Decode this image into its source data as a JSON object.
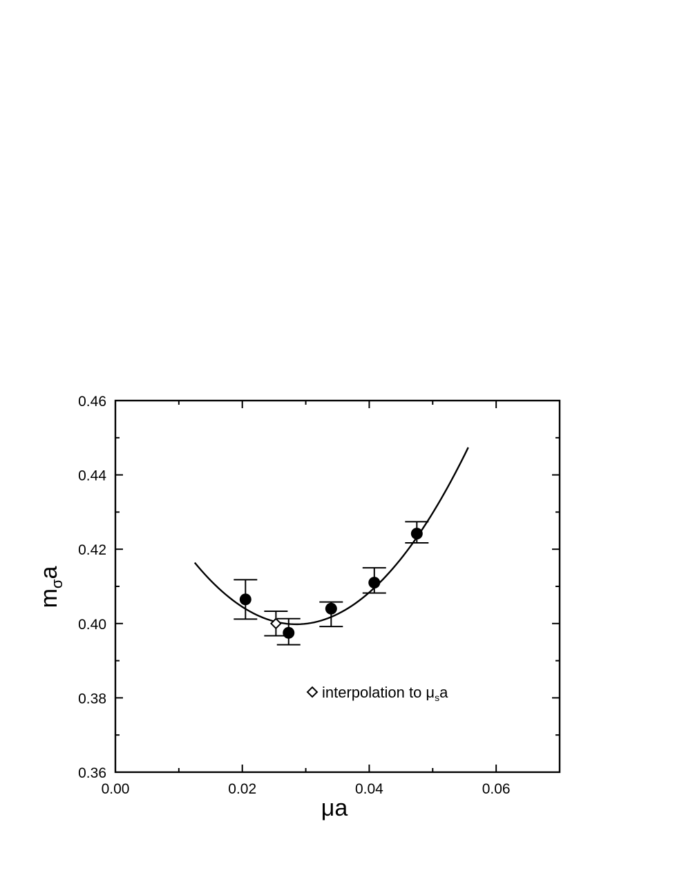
{
  "chart_data": {
    "type": "scatter",
    "title": "",
    "xlabel": "μa",
    "ylabel_main": "m",
    "ylabel_sub": "σ",
    "ylabel_tail": "a",
    "xlim": [
      0.0,
      0.07
    ],
    "ylim": [
      0.36,
      0.46
    ],
    "x_major_ticks": [
      0.0,
      0.02,
      0.04,
      0.06
    ],
    "x_tick_labels": [
      "0.00",
      "0.02",
      "0.04",
      "0.06"
    ],
    "x_minor_ticks": [
      0.01,
      0.03,
      0.05
    ],
    "y_major_ticks": [
      0.36,
      0.38,
      0.4,
      0.42,
      0.44,
      0.46
    ],
    "y_tick_labels": [
      "0.36",
      "0.38",
      "0.40",
      "0.42",
      "0.44",
      "0.46"
    ],
    "y_minor_ticks": [
      0.37,
      0.39,
      0.41,
      0.43,
      0.45
    ],
    "grid": false,
    "series": [
      {
        "marker": "filled-circle",
        "x": [
          0.0205,
          0.0273,
          0.034,
          0.0408,
          0.0475
        ],
        "y": [
          0.4065,
          0.3975,
          0.404,
          0.411,
          0.4242
        ],
        "err_low": [
          0.0053,
          0.0032,
          0.0048,
          0.0028,
          0.0025
        ],
        "err_high": [
          0.0053,
          0.0038,
          0.0018,
          0.004,
          0.0032
        ]
      },
      {
        "marker": "open-diamond",
        "x": [
          0.0253
        ],
        "y": [
          0.4
        ],
        "err_low": [
          0.0033
        ],
        "err_high": [
          0.0033
        ]
      }
    ],
    "fit_curve": {
      "x_range": [
        0.0125,
        0.0556
      ],
      "vertex_x": 0.0285,
      "vertex_y": 0.3998,
      "curvature": 64.8
    },
    "legend": {
      "position": "lower-center",
      "text_main": "interpolation to μ",
      "text_sub": "s",
      "text_tail": "a"
    }
  }
}
